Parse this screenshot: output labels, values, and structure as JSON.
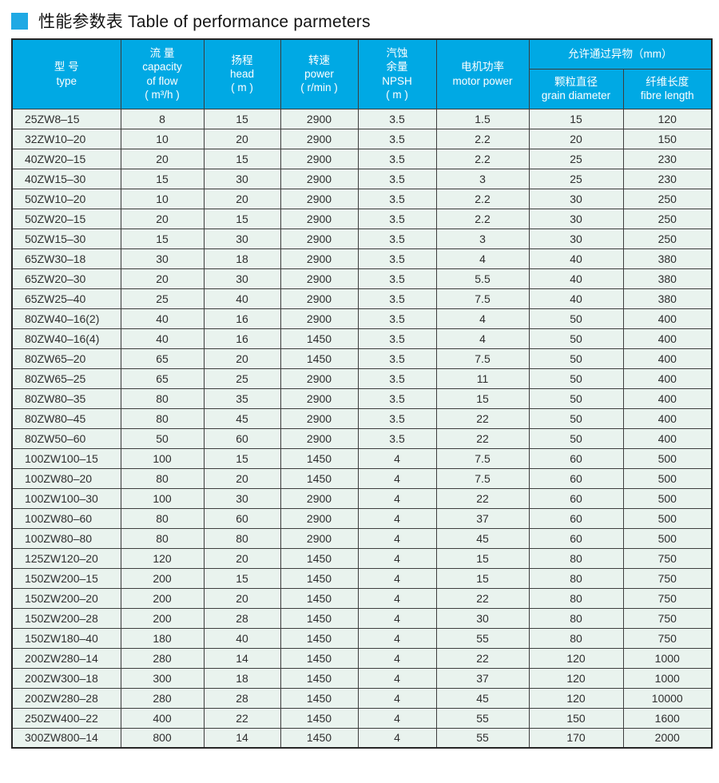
{
  "colors": {
    "accent_blue": "#00a9e4",
    "title_square": "#1fa9e4",
    "row_background": "#e9f3ee",
    "grid_line": "#3d3d3d",
    "header_text": "#ffffff"
  },
  "title": {
    "zh": "性能参数表",
    "en": "Table of performance parmeters",
    "full": "性能参数表 Table of performance parmeters"
  },
  "table": {
    "group_header": "允许通过异物（mm）",
    "columns": [
      {
        "id": "type",
        "header": "型  号\ntype"
      },
      {
        "id": "flow",
        "header": "流 量\ncapacity\nof flow\n( m³/h )"
      },
      {
        "id": "head",
        "header": "扬程\nhead\n( m )"
      },
      {
        "id": "speed",
        "header": "转速\npower\n( r/min )"
      },
      {
        "id": "npsh",
        "header": "汽蚀\n余量\nNPSH\n( m )"
      },
      {
        "id": "motor",
        "header": "电机功率\nmotor power"
      },
      {
        "id": "grain",
        "header": "颗粒直径\ngrain diameter"
      },
      {
        "id": "fibre",
        "header": "纤维长度\nfibre length"
      }
    ],
    "rows": [
      [
        "25ZW8–15",
        "8",
        "15",
        "2900",
        "3.5",
        "1.5",
        "15",
        "120"
      ],
      [
        "32ZW10–20",
        "10",
        "20",
        "2900",
        "3.5",
        "2.2",
        "20",
        "150"
      ],
      [
        "40ZW20–15",
        "20",
        "15",
        "2900",
        "3.5",
        "2.2",
        "25",
        "230"
      ],
      [
        "40ZW15–30",
        "15",
        "30",
        "2900",
        "3.5",
        "3",
        "25",
        "230"
      ],
      [
        "50ZW10–20",
        "10",
        "20",
        "2900",
        "3.5",
        "2.2",
        "30",
        "250"
      ],
      [
        "50ZW20–15",
        "20",
        "15",
        "2900",
        "3.5",
        "2.2",
        "30",
        "250"
      ],
      [
        "50ZW15–30",
        "15",
        "30",
        "2900",
        "3.5",
        "3",
        "30",
        "250"
      ],
      [
        "65ZW30–18",
        "30",
        "18",
        "2900",
        "3.5",
        "4",
        "40",
        "380"
      ],
      [
        "65ZW20–30",
        "20",
        "30",
        "2900",
        "3.5",
        "5.5",
        "40",
        "380"
      ],
      [
        "65ZW25–40",
        "25",
        "40",
        "2900",
        "3.5",
        "7.5",
        "40",
        "380"
      ],
      [
        "80ZW40–16(2)",
        "40",
        "16",
        "2900",
        "3.5",
        "4",
        "50",
        "400"
      ],
      [
        "80ZW40–16(4)",
        "40",
        "16",
        "1450",
        "3.5",
        "4",
        "50",
        "400"
      ],
      [
        "80ZW65–20",
        "65",
        "20",
        "1450",
        "3.5",
        "7.5",
        "50",
        "400"
      ],
      [
        "80ZW65–25",
        "65",
        "25",
        "2900",
        "3.5",
        "11",
        "50",
        "400"
      ],
      [
        "80ZW80–35",
        "80",
        "35",
        "2900",
        "3.5",
        "15",
        "50",
        "400"
      ],
      [
        "80ZW80–45",
        "80",
        "45",
        "2900",
        "3.5",
        "22",
        "50",
        "400"
      ],
      [
        "80ZW50–60",
        "50",
        "60",
        "2900",
        "3.5",
        "22",
        "50",
        "400"
      ],
      [
        "100ZW100–15",
        "100",
        "15",
        "1450",
        "4",
        "7.5",
        "60",
        "500"
      ],
      [
        "100ZW80–20",
        "80",
        "20",
        "1450",
        "4",
        "7.5",
        "60",
        "500"
      ],
      [
        "100ZW100–30",
        "100",
        "30",
        "2900",
        "4",
        "22",
        "60",
        "500"
      ],
      [
        "100ZW80–60",
        "80",
        "60",
        "2900",
        "4",
        "37",
        "60",
        "500"
      ],
      [
        "100ZW80–80",
        "80",
        "80",
        "2900",
        "4",
        "45",
        "60",
        "500"
      ],
      [
        "125ZW120–20",
        "120",
        "20",
        "1450",
        "4",
        "15",
        "80",
        "750"
      ],
      [
        "150ZW200–15",
        "200",
        "15",
        "1450",
        "4",
        "15",
        "80",
        "750"
      ],
      [
        "150ZW200–20",
        "200",
        "20",
        "1450",
        "4",
        "22",
        "80",
        "750"
      ],
      [
        "150ZW200–28",
        "200",
        "28",
        "1450",
        "4",
        "30",
        "80",
        "750"
      ],
      [
        "150ZW180–40",
        "180",
        "40",
        "1450",
        "4",
        "55",
        "80",
        "750"
      ],
      [
        "200ZW280–14",
        "280",
        "14",
        "1450",
        "4",
        "22",
        "120",
        "1000"
      ],
      [
        "200ZW300–18",
        "300",
        "18",
        "1450",
        "4",
        "37",
        "120",
        "1000"
      ],
      [
        "200ZW280–28",
        "280",
        "28",
        "1450",
        "4",
        "45",
        "120",
        "10000"
      ],
      [
        "250ZW400–22",
        "400",
        "22",
        "1450",
        "4",
        "55",
        "150",
        "1600"
      ],
      [
        "300ZW800–14",
        "800",
        "14",
        "1450",
        "4",
        "55",
        "170",
        "2000"
      ]
    ]
  }
}
